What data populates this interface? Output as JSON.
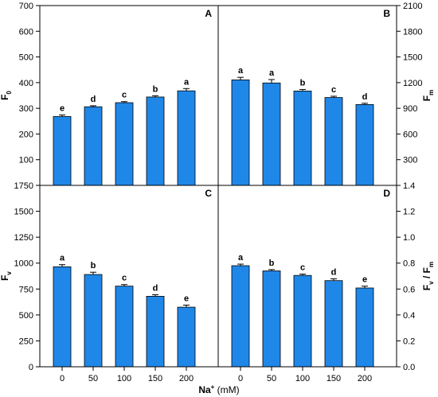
{
  "figure": {
    "x_axis_label": {
      "main": "Na",
      "sup": "+",
      "unit": " (mM)"
    }
  },
  "chart_data": [
    {
      "type": "bar",
      "panel": "A",
      "categories": [
        "0",
        "50",
        "100",
        "150",
        "200"
      ],
      "values": [
        268,
        306,
        322,
        344,
        368
      ],
      "errors": [
        6,
        4,
        4,
        5,
        9
      ],
      "letters": [
        "e",
        "d",
        "c",
        "b",
        "a"
      ],
      "ylabel": {
        "main": "F",
        "sub": "0"
      },
      "ylim": [
        0,
        700
      ],
      "yticks": [
        100,
        200,
        300,
        400,
        500,
        600,
        700
      ],
      "yaxis_side": "left",
      "bar_color": "#1f87e8"
    },
    {
      "type": "bar",
      "panel": "B",
      "categories": [
        "0",
        "50",
        "100",
        "150",
        "200"
      ],
      "values": [
        1232,
        1196,
        1102,
        1026,
        944
      ],
      "errors": [
        30,
        40,
        18,
        15,
        15
      ],
      "letters": [
        "a",
        "a",
        "b",
        "c",
        "d"
      ],
      "ylabel": {
        "main": "F",
        "sub": "m"
      },
      "ylim": [
        0,
        2100
      ],
      "yticks": [
        300,
        600,
        900,
        1200,
        1500,
        1800,
        2100
      ],
      "yaxis_side": "right",
      "bar_color": "#1f87e8"
    },
    {
      "type": "bar",
      "panel": "C",
      "categories": [
        "0",
        "50",
        "100",
        "150",
        "200"
      ],
      "values": [
        965,
        890,
        778,
        680,
        575
      ],
      "errors": [
        20,
        22,
        15,
        15,
        20
      ],
      "letters": [
        "a",
        "b",
        "c",
        "d",
        "e"
      ],
      "ylabel": {
        "main": "F",
        "sub": "v"
      },
      "ylim": [
        0,
        1750
      ],
      "yticks": [
        0,
        250,
        500,
        750,
        1000,
        1250,
        1500,
        1750
      ],
      "yaxis_side": "left",
      "bar_color": "#1f87e8"
    },
    {
      "type": "bar",
      "panel": "D",
      "categories": [
        "0",
        "50",
        "100",
        "150",
        "200"
      ],
      "values": [
        0.78,
        0.74,
        0.705,
        0.665,
        0.608
      ],
      "errors": [
        0.012,
        0.01,
        0.01,
        0.014,
        0.014
      ],
      "letters": [
        "a",
        "b",
        "c",
        "d",
        "e"
      ],
      "ylabel": {
        "main": "F",
        "sub1": "v",
        "mid": " / F",
        "sub2": "m"
      },
      "ylim": [
        0,
        1.4
      ],
      "yticks": [
        0.0,
        0.2,
        0.4,
        0.6,
        0.8,
        1.0,
        1.2,
        1.4
      ],
      "ytick_labels": [
        "0.0",
        "0.2",
        "0.4",
        "0.6",
        "0.8",
        "1.0",
        "1.2",
        "1.4"
      ],
      "yaxis_side": "right",
      "bar_color": "#1f87e8"
    }
  ]
}
